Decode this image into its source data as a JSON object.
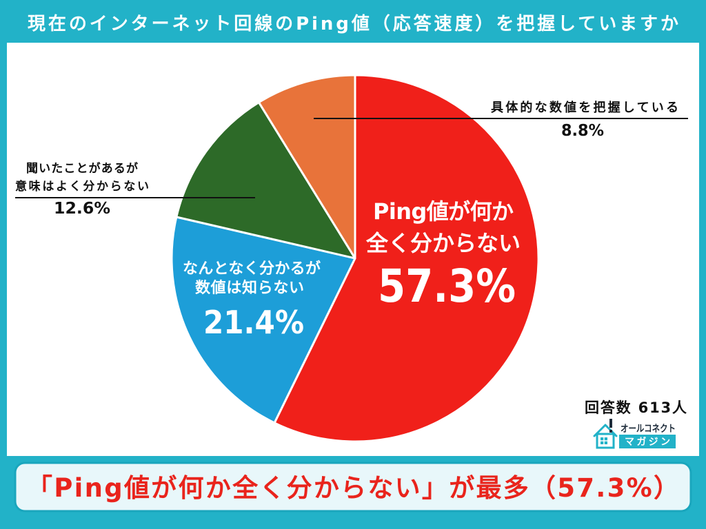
{
  "chart_data": {
    "type": "pie",
    "title": "現在のインターネット回線のPing値（応答速度）を把握していますか",
    "categories": [
      [
        "Ping値が何か",
        "全く分からない"
      ],
      [
        "なんとなく分かるが",
        "数値は知らない"
      ],
      [
        "聞いたことがあるが",
        "意味はよく分からない"
      ],
      [
        "具体的な数値を把握している"
      ]
    ],
    "values": [
      57.3,
      21.4,
      12.6,
      8.8
    ],
    "value_labels": [
      "57.3%",
      "21.4%",
      "12.6%",
      "8.8%"
    ],
    "colors": [
      "#f0201a",
      "#1d9ed8",
      "#2d6a28",
      "#e8733a"
    ],
    "respondents": "回答数 613人"
  },
  "summary": "「Ping値が何か全く分からない」が最多（57.3%）",
  "logo": {
    "icon": "house-alert-icon",
    "name": "オールコネクト",
    "tagline": "マガジン"
  },
  "theme": {
    "frame": "#22b2c8",
    "panel": "#ffffff",
    "summary_bg": "#e8f7fa",
    "summary_border": "#1aa6bd",
    "summary_text": "#e9241c",
    "logo_text": "#1d2b3a"
  }
}
